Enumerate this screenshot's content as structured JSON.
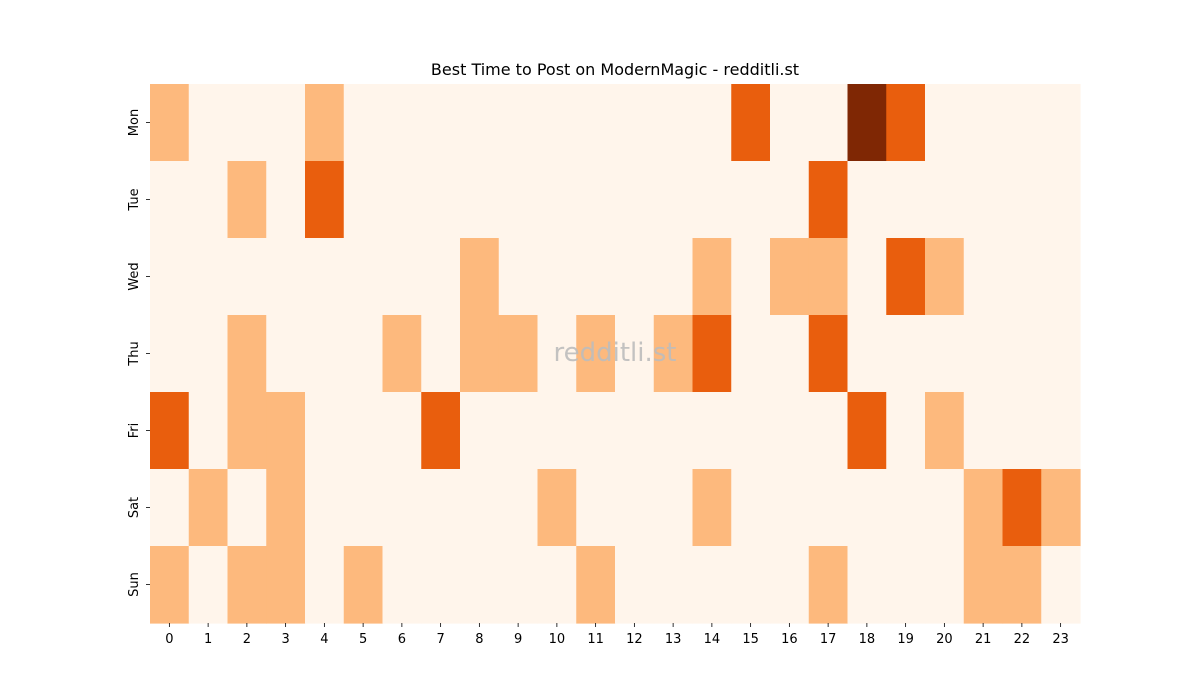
{
  "chart_data": {
    "type": "heatmap",
    "title": "Best Time to Post on ModernMagic - redditli.st",
    "watermark": "redditli.st",
    "x_categories": [
      "0",
      "1",
      "2",
      "3",
      "4",
      "5",
      "6",
      "7",
      "8",
      "9",
      "10",
      "11",
      "12",
      "13",
      "14",
      "15",
      "16",
      "17",
      "18",
      "19",
      "20",
      "21",
      "22",
      "23"
    ],
    "y_categories": [
      "Mon",
      "Tue",
      "Wed",
      "Thu",
      "Fri",
      "Sat",
      "Sun"
    ],
    "value_range": [
      0,
      3
    ],
    "colors": {
      "0": "#fff5eb",
      "1": "#fdb97d",
      "2": "#e95e0d",
      "3": "#7f2704"
    },
    "values": [
      [
        1,
        0,
        0,
        0,
        1,
        0,
        0,
        0,
        0,
        0,
        0,
        0,
        0,
        0,
        0,
        2,
        0,
        0,
        3,
        2,
        0,
        0,
        0,
        0
      ],
      [
        0,
        0,
        1,
        0,
        2,
        0,
        0,
        0,
        0,
        0,
        0,
        0,
        0,
        0,
        0,
        0,
        0,
        2,
        0,
        0,
        0,
        0,
        0,
        0
      ],
      [
        0,
        0,
        0,
        0,
        0,
        0,
        0,
        0,
        1,
        0,
        0,
        0,
        0,
        0,
        1,
        0,
        1,
        1,
        0,
        2,
        1,
        0,
        0,
        0
      ],
      [
        0,
        0,
        1,
        0,
        0,
        0,
        1,
        0,
        1,
        1,
        0,
        1,
        0,
        1,
        2,
        0,
        0,
        2,
        0,
        0,
        0,
        0,
        0,
        0
      ],
      [
        2,
        0,
        1,
        1,
        0,
        0,
        0,
        2,
        0,
        0,
        0,
        0,
        0,
        0,
        0,
        0,
        0,
        0,
        2,
        0,
        1,
        0,
        0,
        0
      ],
      [
        0,
        1,
        0,
        1,
        0,
        0,
        0,
        0,
        0,
        0,
        1,
        0,
        0,
        0,
        1,
        0,
        0,
        0,
        0,
        0,
        0,
        1,
        2,
        1
      ],
      [
        1,
        0,
        1,
        1,
        0,
        1,
        0,
        0,
        0,
        0,
        0,
        1,
        0,
        0,
        0,
        0,
        0,
        1,
        0,
        0,
        0,
        1,
        1,
        0
      ]
    ]
  }
}
